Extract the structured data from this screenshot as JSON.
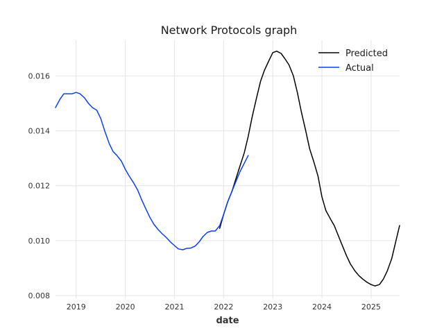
{
  "chart_data": {
    "type": "line",
    "title": "Network Protocols graph",
    "xlabel": "date",
    "ylabel": "",
    "xlim": [
      2018.58,
      2025.58
    ],
    "ylim": [
      0.0079,
      0.0173
    ],
    "x_ticks": [
      {
        "value": 2019,
        "label": "2019"
      },
      {
        "value": 2020,
        "label": "2020"
      },
      {
        "value": 2021,
        "label": "2021"
      },
      {
        "value": 2022,
        "label": "2022"
      },
      {
        "value": 2023,
        "label": "2023"
      },
      {
        "value": 2024,
        "label": "2024"
      },
      {
        "value": 2025,
        "label": "2025"
      }
    ],
    "y_ticks": [
      {
        "value": 0.008,
        "label": "0.008"
      },
      {
        "value": 0.01,
        "label": "0.010"
      },
      {
        "value": 0.012,
        "label": "0.012"
      },
      {
        "value": 0.014,
        "label": "0.014"
      },
      {
        "value": 0.016,
        "label": "0.016"
      }
    ],
    "grid": true,
    "legend_position": "top-right",
    "series": [
      {
        "name": "Predicted",
        "color": "#000000",
        "points": [
          [
            2021.92,
            0.01045
          ],
          [
            2022.0,
            0.01095
          ],
          [
            2022.08,
            0.0114
          ],
          [
            2022.17,
            0.0118
          ],
          [
            2022.25,
            0.01225
          ],
          [
            2022.33,
            0.0127
          ],
          [
            2022.42,
            0.0132
          ],
          [
            2022.5,
            0.0138
          ],
          [
            2022.58,
            0.0145
          ],
          [
            2022.67,
            0.0152
          ],
          [
            2022.75,
            0.0158
          ],
          [
            2022.83,
            0.0162
          ],
          [
            2022.92,
            0.01655
          ],
          [
            2023.0,
            0.01685
          ],
          [
            2023.08,
            0.0169
          ],
          [
            2023.17,
            0.01682
          ],
          [
            2023.25,
            0.01662
          ],
          [
            2023.33,
            0.0164
          ],
          [
            2023.42,
            0.016
          ],
          [
            2023.5,
            0.0154
          ],
          [
            2023.58,
            0.0147
          ],
          [
            2023.67,
            0.014
          ],
          [
            2023.75,
            0.01335
          ],
          [
            2023.83,
            0.0129
          ],
          [
            2023.92,
            0.01235
          ],
          [
            2024.0,
            0.0116
          ],
          [
            2024.08,
            0.0111
          ],
          [
            2024.17,
            0.0108
          ],
          [
            2024.25,
            0.01055
          ],
          [
            2024.33,
            0.0102
          ],
          [
            2024.42,
            0.0098
          ],
          [
            2024.5,
            0.00945
          ],
          [
            2024.58,
            0.00915
          ],
          [
            2024.67,
            0.0089
          ],
          [
            2024.75,
            0.00873
          ],
          [
            2024.83,
            0.0086
          ],
          [
            2024.92,
            0.00848
          ],
          [
            2025.0,
            0.0084
          ],
          [
            2025.08,
            0.00835
          ],
          [
            2025.17,
            0.0084
          ],
          [
            2025.25,
            0.0086
          ],
          [
            2025.33,
            0.0089
          ],
          [
            2025.42,
            0.00935
          ],
          [
            2025.5,
            0.00995
          ],
          [
            2025.58,
            0.01055
          ]
        ]
      },
      {
        "name": "Actual",
        "color": "#0d3ff2",
        "points": [
          [
            2018.58,
            0.01485
          ],
          [
            2018.67,
            0.01515
          ],
          [
            2018.75,
            0.01535
          ],
          [
            2018.83,
            0.01535
          ],
          [
            2018.92,
            0.01535
          ],
          [
            2019.0,
            0.0154
          ],
          [
            2019.08,
            0.01535
          ],
          [
            2019.17,
            0.0152
          ],
          [
            2019.25,
            0.015
          ],
          [
            2019.33,
            0.01485
          ],
          [
            2019.42,
            0.01475
          ],
          [
            2019.5,
            0.01445
          ],
          [
            2019.58,
            0.014
          ],
          [
            2019.67,
            0.01355
          ],
          [
            2019.75,
            0.01325
          ],
          [
            2019.83,
            0.0131
          ],
          [
            2019.92,
            0.0129
          ],
          [
            2020.0,
            0.0126
          ],
          [
            2020.08,
            0.01235
          ],
          [
            2020.17,
            0.0121
          ],
          [
            2020.25,
            0.01185
          ],
          [
            2020.33,
            0.0115
          ],
          [
            2020.42,
            0.01115
          ],
          [
            2020.5,
            0.01085
          ],
          [
            2020.58,
            0.0106
          ],
          [
            2020.67,
            0.0104
          ],
          [
            2020.75,
            0.01025
          ],
          [
            2020.83,
            0.01012
          ],
          [
            2020.92,
            0.00995
          ],
          [
            2021.0,
            0.00982
          ],
          [
            2021.08,
            0.0097
          ],
          [
            2021.17,
            0.00967
          ],
          [
            2021.25,
            0.00972
          ],
          [
            2021.33,
            0.00973
          ],
          [
            2021.42,
            0.0098
          ],
          [
            2021.5,
            0.00995
          ],
          [
            2021.58,
            0.01015
          ],
          [
            2021.67,
            0.0103
          ],
          [
            2021.75,
            0.01035
          ],
          [
            2021.83,
            0.01035
          ],
          [
            2021.92,
            0.01055
          ],
          [
            2022.0,
            0.01095
          ],
          [
            2022.08,
            0.0114
          ],
          [
            2022.17,
            0.0118
          ],
          [
            2022.25,
            0.01215
          ],
          [
            2022.33,
            0.0125
          ],
          [
            2022.42,
            0.01282
          ],
          [
            2022.5,
            0.0131
          ]
        ]
      }
    ]
  }
}
